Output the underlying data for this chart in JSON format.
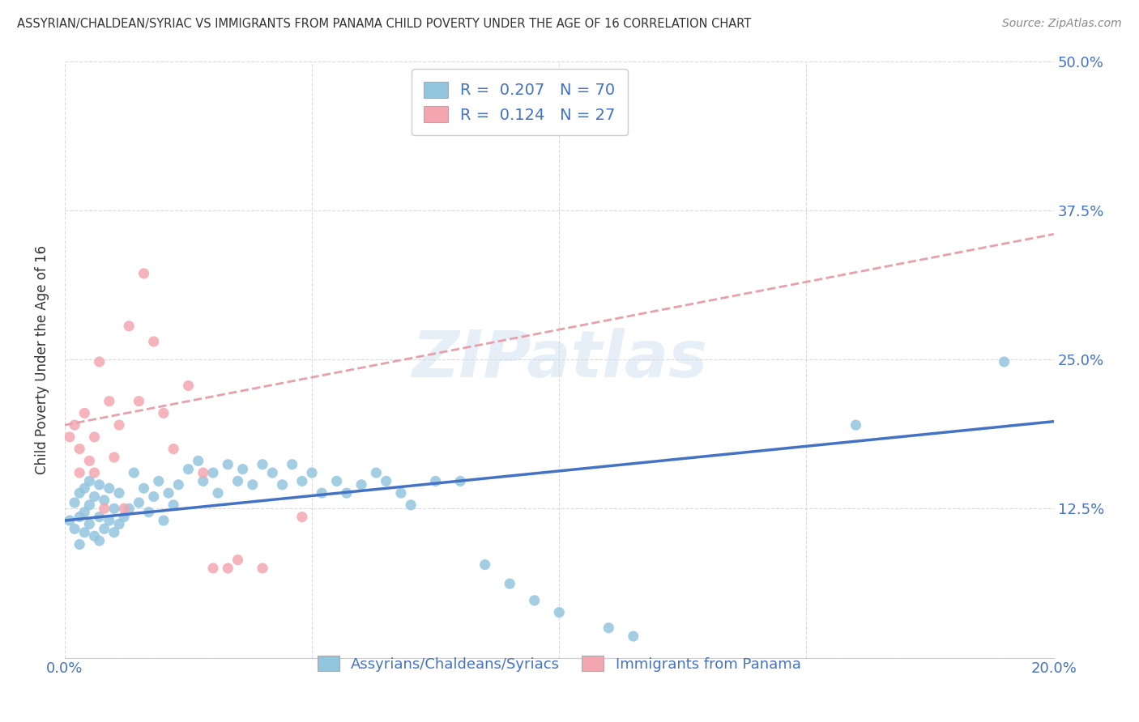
{
  "title": "ASSYRIAN/CHALDEAN/SYRIAC VS IMMIGRANTS FROM PANAMA CHILD POVERTY UNDER THE AGE OF 16 CORRELATION CHART",
  "source": "Source: ZipAtlas.com",
  "ylabel": "Child Poverty Under the Age of 16",
  "xlim": [
    0.0,
    0.2
  ],
  "ylim": [
    0.0,
    0.5
  ],
  "xtick_vals": [
    0.0,
    0.05,
    0.1,
    0.15,
    0.2
  ],
  "xticklabels": [
    "0.0%",
    "",
    "",
    "",
    "20.0%"
  ],
  "ytick_vals": [
    0.0,
    0.125,
    0.25,
    0.375,
    0.5
  ],
  "yticklabels_right": [
    "",
    "12.5%",
    "25.0%",
    "37.5%",
    "50.0%"
  ],
  "legend1_label": "Assyrians/Chaldeans/Syriacs",
  "legend2_label": "Immigrants from Panama",
  "R1": 0.207,
  "N1": 70,
  "R2": 0.124,
  "N2": 27,
  "color1": "#92c5de",
  "color2": "#f4a6b0",
  "trendline1_color": "#4472c4",
  "trendline2_color": "#e8a0aa",
  "background_color": "#ffffff",
  "watermark": "ZIPatlas",
  "scatter1_x": [
    0.001,
    0.002,
    0.002,
    0.003,
    0.003,
    0.003,
    0.004,
    0.004,
    0.004,
    0.005,
    0.005,
    0.005,
    0.006,
    0.006,
    0.007,
    0.007,
    0.007,
    0.008,
    0.008,
    0.009,
    0.009,
    0.01,
    0.01,
    0.011,
    0.011,
    0.012,
    0.013,
    0.014,
    0.015,
    0.016,
    0.017,
    0.018,
    0.019,
    0.02,
    0.021,
    0.022,
    0.023,
    0.025,
    0.027,
    0.028,
    0.03,
    0.031,
    0.033,
    0.035,
    0.036,
    0.038,
    0.04,
    0.042,
    0.044,
    0.046,
    0.048,
    0.05,
    0.052,
    0.055,
    0.057,
    0.06,
    0.063,
    0.065,
    0.068,
    0.07,
    0.075,
    0.08,
    0.085,
    0.09,
    0.095,
    0.1,
    0.11,
    0.115,
    0.16,
    0.19
  ],
  "scatter1_y": [
    0.115,
    0.108,
    0.13,
    0.095,
    0.118,
    0.138,
    0.105,
    0.122,
    0.142,
    0.112,
    0.128,
    0.148,
    0.102,
    0.135,
    0.098,
    0.118,
    0.145,
    0.108,
    0.132,
    0.115,
    0.142,
    0.105,
    0.125,
    0.112,
    0.138,
    0.118,
    0.125,
    0.155,
    0.13,
    0.142,
    0.122,
    0.135,
    0.148,
    0.115,
    0.138,
    0.128,
    0.145,
    0.158,
    0.165,
    0.148,
    0.155,
    0.138,
    0.162,
    0.148,
    0.158,
    0.145,
    0.162,
    0.155,
    0.145,
    0.162,
    0.148,
    0.155,
    0.138,
    0.148,
    0.138,
    0.145,
    0.155,
    0.148,
    0.138,
    0.128,
    0.148,
    0.148,
    0.078,
    0.062,
    0.048,
    0.038,
    0.025,
    0.018,
    0.195,
    0.248
  ],
  "scatter2_x": [
    0.001,
    0.002,
    0.003,
    0.003,
    0.004,
    0.005,
    0.006,
    0.006,
    0.007,
    0.008,
    0.009,
    0.01,
    0.011,
    0.012,
    0.013,
    0.015,
    0.016,
    0.018,
    0.02,
    0.022,
    0.025,
    0.028,
    0.03,
    0.033,
    0.035,
    0.04,
    0.048
  ],
  "scatter2_y": [
    0.185,
    0.195,
    0.175,
    0.155,
    0.205,
    0.165,
    0.185,
    0.155,
    0.248,
    0.125,
    0.215,
    0.168,
    0.195,
    0.125,
    0.278,
    0.215,
    0.322,
    0.265,
    0.205,
    0.175,
    0.228,
    0.155,
    0.075,
    0.075,
    0.082,
    0.075,
    0.118
  ],
  "trendline1_x0": 0.0,
  "trendline1_x1": 0.2,
  "trendline1_y0": 0.115,
  "trendline1_y1": 0.198,
  "trendline2_x0": 0.0,
  "trendline2_x1": 0.2,
  "trendline2_y0": 0.195,
  "trendline2_y1": 0.355
}
